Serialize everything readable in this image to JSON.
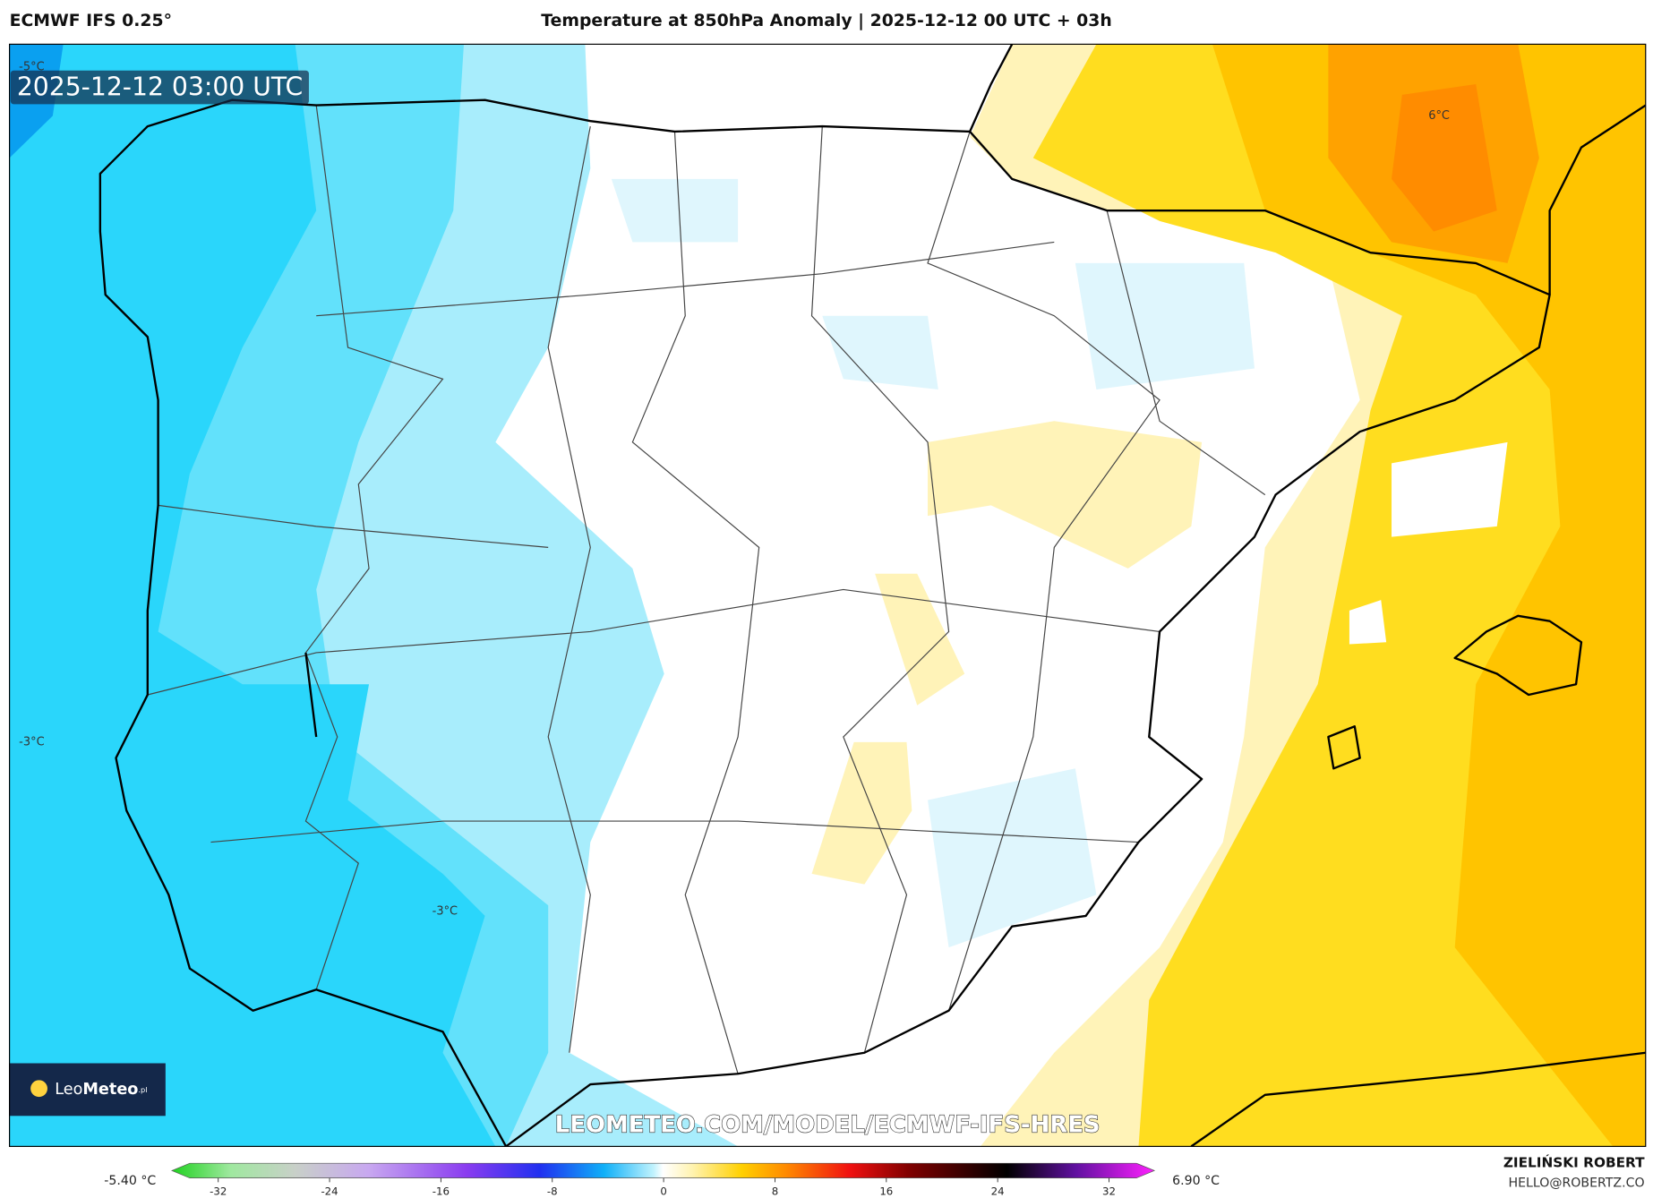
{
  "header": {
    "model": "ECMWF IFS 0.25°",
    "title": "Temperature at 850hPa Anomaly | 2025-12-12 00 UTC + 03h"
  },
  "map": {
    "timestamp": "2025-12-12 03:00 UTC",
    "contour_labels": [
      "-5°C",
      "6°C",
      "-3°C",
      "-3°C"
    ],
    "watermark": "LEOMETEO.COM/MODEL/ECMWF-IFS-HRES",
    "logo": {
      "name_light": "Leo",
      "name_bold": "Meteo",
      "suffix": ".pl"
    }
  },
  "colorbar": {
    "min_label": "-5.40 °C",
    "max_label": "6.90 °C",
    "ticks": [
      -32,
      -24,
      -16,
      -8,
      0,
      8,
      16,
      24,
      32
    ]
  },
  "credits": {
    "author": "ZIELIŃSKI ROBERT",
    "email": "HELLO@ROBERTZ.CO"
  }
}
